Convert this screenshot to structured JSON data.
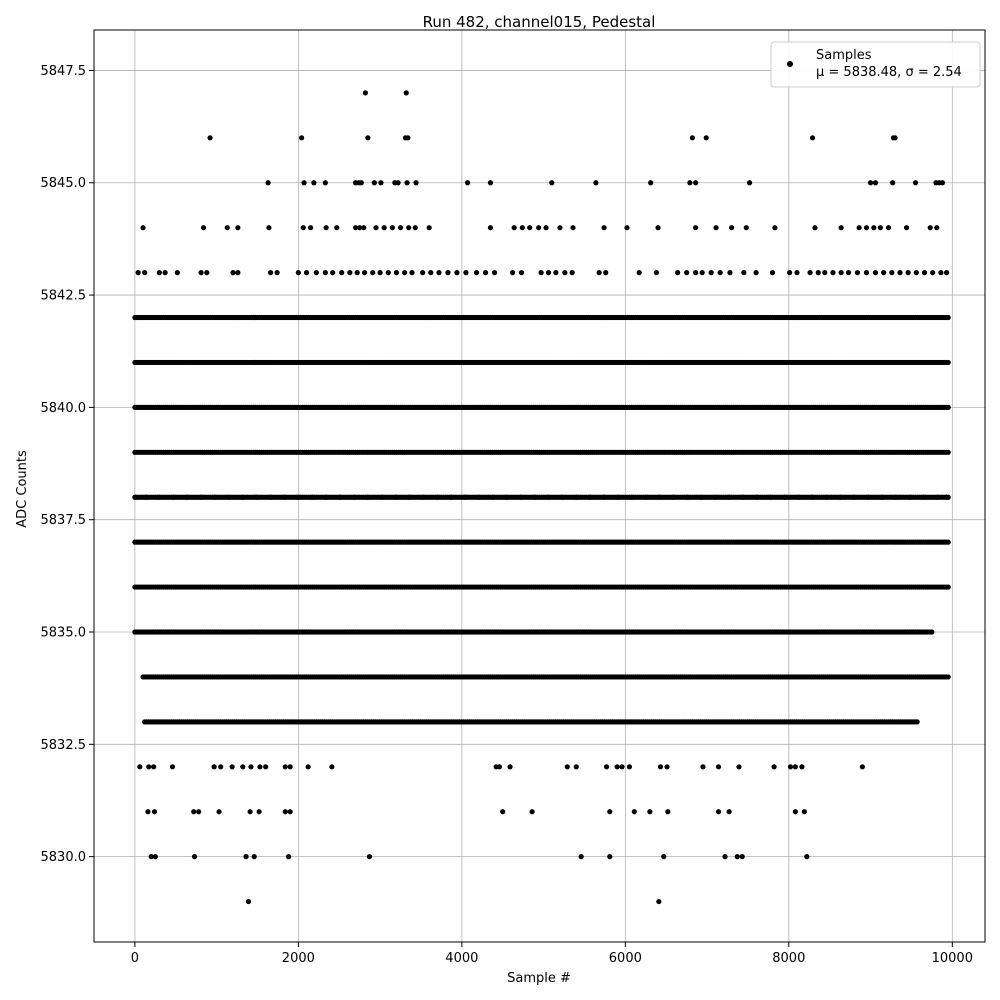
{
  "chart_data": {
    "type": "scatter",
    "title": "Run 482, channel015, Pedestal",
    "xlabel": "Sample #",
    "ylabel": "ADC Counts",
    "xlim": [
      -500,
      10400
    ],
    "ylim": [
      5828.1,
      5848.4
    ],
    "xticks": [
      0,
      2000,
      4000,
      6000,
      8000,
      10000
    ],
    "xtick_labels": [
      "0",
      "2000",
      "4000",
      "6000",
      "8000",
      "10000"
    ],
    "yticks": [
      5830.0,
      5832.5,
      5835.0,
      5837.5,
      5840.0,
      5842.5,
      5845.0,
      5847.5
    ],
    "ytick_labels": [
      "5830.0",
      "5832.5",
      "5835.0",
      "5837.5",
      "5840.0",
      "5842.5",
      "5845.0",
      "5847.5"
    ],
    "grid": true,
    "legend_position": "top-right",
    "marker_color": "#000000",
    "series": [
      {
        "name": "Samples",
        "legend_stats": "μ = 5838.48, σ = 2.54",
        "points": [
          [
            920,
            5846
          ],
          [
            2040,
            5846
          ],
          [
            2850,
            5846
          ],
          [
            3310,
            5846
          ],
          [
            3340,
            5846
          ],
          [
            6820,
            5846
          ],
          [
            6990,
            5846
          ],
          [
            8290,
            5846
          ],
          [
            9280,
            5846
          ],
          [
            9300,
            5846
          ],
          [
            2820,
            5847
          ],
          [
            3320,
            5847
          ],
          [
            1630,
            5845
          ],
          [
            2070,
            5845
          ],
          [
            2190,
            5845
          ],
          [
            2330,
            5845
          ],
          [
            2700,
            5845
          ],
          [
            2740,
            5845
          ],
          [
            2770,
            5845
          ],
          [
            2930,
            5845
          ],
          [
            3010,
            5845
          ],
          [
            3180,
            5845
          ],
          [
            3220,
            5845
          ],
          [
            3330,
            5845
          ],
          [
            3440,
            5845
          ],
          [
            4070,
            5845
          ],
          [
            4350,
            5845
          ],
          [
            5100,
            5845
          ],
          [
            5640,
            5845
          ],
          [
            6310,
            5845
          ],
          [
            6790,
            5845
          ],
          [
            6860,
            5845
          ],
          [
            7520,
            5845
          ],
          [
            9000,
            5845
          ],
          [
            9060,
            5845
          ],
          [
            9270,
            5845
          ],
          [
            9550,
            5845
          ],
          [
            9800,
            5845
          ],
          [
            9840,
            5845
          ],
          [
            9880,
            5845
          ],
          [
            100,
            5844
          ],
          [
            840,
            5844
          ],
          [
            1130,
            5844
          ],
          [
            1260,
            5844
          ],
          [
            1640,
            5844
          ],
          [
            2060,
            5844
          ],
          [
            2150,
            5844
          ],
          [
            2340,
            5844
          ],
          [
            2470,
            5844
          ],
          [
            2700,
            5844
          ],
          [
            2750,
            5844
          ],
          [
            2800,
            5844
          ],
          [
            2950,
            5844
          ],
          [
            3050,
            5844
          ],
          [
            3150,
            5844
          ],
          [
            3250,
            5844
          ],
          [
            3350,
            5844
          ],
          [
            3430,
            5844
          ],
          [
            3600,
            5844
          ],
          [
            4350,
            5844
          ],
          [
            4640,
            5844
          ],
          [
            4740,
            5844
          ],
          [
            4830,
            5844
          ],
          [
            4940,
            5844
          ],
          [
            5030,
            5844
          ],
          [
            5200,
            5844
          ],
          [
            5360,
            5844
          ],
          [
            5740,
            5844
          ],
          [
            6020,
            5844
          ],
          [
            6400,
            5844
          ],
          [
            6860,
            5844
          ],
          [
            7110,
            5844
          ],
          [
            7300,
            5844
          ],
          [
            7480,
            5844
          ],
          [
            7830,
            5844
          ],
          [
            8320,
            5844
          ],
          [
            8640,
            5844
          ],
          [
            8860,
            5844
          ],
          [
            8950,
            5844
          ],
          [
            9040,
            5844
          ],
          [
            9120,
            5844
          ],
          [
            9220,
            5844
          ],
          [
            9440,
            5844
          ],
          [
            9730,
            5844
          ],
          [
            9810,
            5844
          ],
          [
            40,
            5843
          ],
          [
            120,
            5843
          ],
          [
            300,
            5843
          ],
          [
            370,
            5843
          ],
          [
            520,
            5843
          ],
          [
            810,
            5843
          ],
          [
            880,
            5843
          ],
          [
            1200,
            5843
          ],
          [
            1260,
            5843
          ],
          [
            1660,
            5843
          ],
          [
            1740,
            5843
          ],
          [
            2000,
            5843
          ],
          [
            2100,
            5843
          ],
          [
            2220,
            5843
          ],
          [
            2330,
            5843
          ],
          [
            2420,
            5843
          ],
          [
            2530,
            5843
          ],
          [
            2630,
            5843
          ],
          [
            2720,
            5843
          ],
          [
            2810,
            5843
          ],
          [
            2910,
            5843
          ],
          [
            3000,
            5843
          ],
          [
            3100,
            5843
          ],
          [
            3200,
            5843
          ],
          [
            3300,
            5843
          ],
          [
            3390,
            5843
          ],
          [
            3520,
            5843
          ],
          [
            3620,
            5843
          ],
          [
            3720,
            5843
          ],
          [
            3830,
            5843
          ],
          [
            3940,
            5843
          ],
          [
            4050,
            5843
          ],
          [
            4180,
            5843
          ],
          [
            4290,
            5843
          ],
          [
            4400,
            5843
          ],
          [
            4620,
            5843
          ],
          [
            4730,
            5843
          ],
          [
            4970,
            5843
          ],
          [
            5060,
            5843
          ],
          [
            5150,
            5843
          ],
          [
            5260,
            5843
          ],
          [
            5350,
            5843
          ],
          [
            5680,
            5843
          ],
          [
            5760,
            5843
          ],
          [
            6170,
            5843
          ],
          [
            6380,
            5843
          ],
          [
            6640,
            5843
          ],
          [
            6750,
            5843
          ],
          [
            6860,
            5843
          ],
          [
            6940,
            5843
          ],
          [
            7050,
            5843
          ],
          [
            7160,
            5843
          ],
          [
            7280,
            5843
          ],
          [
            7450,
            5843
          ],
          [
            7600,
            5843
          ],
          [
            7800,
            5843
          ],
          [
            8010,
            5843
          ],
          [
            8100,
            5843
          ],
          [
            8260,
            5843
          ],
          [
            8360,
            5843
          ],
          [
            8440,
            5843
          ],
          [
            8540,
            5843
          ],
          [
            8640,
            5843
          ],
          [
            8730,
            5843
          ],
          [
            8840,
            5843
          ],
          [
            8950,
            5843
          ],
          [
            9060,
            5843
          ],
          [
            9160,
            5843
          ],
          [
            9260,
            5843
          ],
          [
            9360,
            5843
          ],
          [
            9460,
            5843
          ],
          [
            9560,
            5843
          ],
          [
            9660,
            5843
          ],
          [
            9760,
            5843
          ],
          [
            9860,
            5843
          ],
          [
            9930,
            5843
          ],
          [
            10,
            5838
          ],
          [
            140,
            5838
          ],
          [
            300,
            5838
          ],
          [
            470,
            5838
          ],
          [
            640,
            5838
          ],
          [
            810,
            5838
          ],
          [
            980,
            5838
          ],
          [
            1150,
            5838
          ],
          [
            1320,
            5838
          ],
          [
            1490,
            5838
          ],
          [
            1660,
            5838
          ],
          [
            1830,
            5838
          ],
          [
            2000,
            5838
          ],
          [
            2170,
            5838
          ],
          [
            2340,
            5838
          ],
          [
            2510,
            5838
          ],
          [
            2680,
            5838
          ],
          [
            2850,
            5838
          ],
          [
            3020,
            5838
          ],
          [
            3190,
            5838
          ],
          [
            3360,
            5838
          ],
          [
            3530,
            5838
          ],
          [
            3700,
            5838
          ],
          [
            3870,
            5838
          ],
          [
            4040,
            5838
          ],
          [
            4210,
            5838
          ],
          [
            4380,
            5838
          ],
          [
            4550,
            5838
          ],
          [
            4720,
            5838
          ],
          [
            4890,
            5838
          ],
          [
            5060,
            5838
          ],
          [
            5230,
            5838
          ],
          [
            5400,
            5838
          ],
          [
            5570,
            5838
          ],
          [
            5740,
            5838
          ],
          [
            5910,
            5838
          ],
          [
            6080,
            5838
          ],
          [
            6250,
            5838
          ],
          [
            6420,
            5838
          ],
          [
            6590,
            5838
          ],
          [
            6760,
            5838
          ],
          [
            6930,
            5838
          ],
          [
            7100,
            5838
          ],
          [
            7270,
            5838
          ],
          [
            7440,
            5838
          ],
          [
            7610,
            5838
          ],
          [
            7780,
            5838
          ],
          [
            7950,
            5838
          ],
          [
            8120,
            5838
          ],
          [
            8290,
            5838
          ],
          [
            8460,
            5838
          ],
          [
            8630,
            5838
          ],
          [
            8800,
            5838
          ],
          [
            8970,
            5838
          ],
          [
            9140,
            5838
          ],
          [
            9310,
            5838
          ],
          [
            9480,
            5838
          ],
          [
            9650,
            5838
          ],
          [
            9820,
            5838
          ],
          [
            9930,
            5838
          ],
          [
            60,
            5832
          ],
          [
            170,
            5832
          ],
          [
            230,
            5832
          ],
          [
            460,
            5832
          ],
          [
            970,
            5832
          ],
          [
            1050,
            5832
          ],
          [
            1190,
            5832
          ],
          [
            1320,
            5832
          ],
          [
            1420,
            5832
          ],
          [
            1530,
            5832
          ],
          [
            1600,
            5832
          ],
          [
            1840,
            5832
          ],
          [
            1900,
            5832
          ],
          [
            2120,
            5832
          ],
          [
            2410,
            5832
          ],
          [
            4420,
            5832
          ],
          [
            4460,
            5832
          ],
          [
            4590,
            5832
          ],
          [
            5290,
            5832
          ],
          [
            5400,
            5832
          ],
          [
            5770,
            5832
          ],
          [
            5900,
            5832
          ],
          [
            5960,
            5832
          ],
          [
            6050,
            5832
          ],
          [
            6430,
            5832
          ],
          [
            6510,
            5832
          ],
          [
            6950,
            5832
          ],
          [
            7140,
            5832
          ],
          [
            7390,
            5832
          ],
          [
            7820,
            5832
          ],
          [
            8020,
            5832
          ],
          [
            8080,
            5832
          ],
          [
            8160,
            5832
          ],
          [
            8900,
            5832
          ],
          [
            160,
            5831
          ],
          [
            240,
            5831
          ],
          [
            720,
            5831
          ],
          [
            780,
            5831
          ],
          [
            1030,
            5831
          ],
          [
            1410,
            5831
          ],
          [
            1520,
            5831
          ],
          [
            1840,
            5831
          ],
          [
            1900,
            5831
          ],
          [
            4500,
            5831
          ],
          [
            4860,
            5831
          ],
          [
            5810,
            5831
          ],
          [
            6110,
            5831
          ],
          [
            6300,
            5831
          ],
          [
            6520,
            5831
          ],
          [
            7140,
            5831
          ],
          [
            7270,
            5831
          ],
          [
            8080,
            5831
          ],
          [
            8190,
            5831
          ],
          [
            200,
            5830
          ],
          [
            250,
            5830
          ],
          [
            730,
            5830
          ],
          [
            1360,
            5830
          ],
          [
            1460,
            5830
          ],
          [
            1880,
            5830
          ],
          [
            2870,
            5830
          ],
          [
            5460,
            5830
          ],
          [
            5810,
            5830
          ],
          [
            6470,
            5830
          ],
          [
            7220,
            5830
          ],
          [
            7370,
            5830
          ],
          [
            7430,
            5830
          ],
          [
            8220,
            5830
          ],
          [
            1390,
            5829
          ],
          [
            6410,
            5829
          ]
        ],
        "dense_rows": [
          {
            "y": 5842,
            "x_range": [
              0,
              9950
            ]
          },
          {
            "y": 5841,
            "x_range": [
              0,
              9950
            ]
          },
          {
            "y": 5840,
            "x_range": [
              0,
              9950
            ]
          },
          {
            "y": 5839,
            "x_range": [
              0,
              9950
            ]
          },
          {
            "y": 5838,
            "x_range": [
              0,
              9950
            ]
          },
          {
            "y": 5837,
            "x_range": [
              0,
              9950
            ]
          },
          {
            "y": 5836,
            "x_range": [
              0,
              9950
            ]
          },
          {
            "y": 5835,
            "x_range": [
              0,
              9750
            ]
          },
          {
            "y": 5834,
            "x_range": [
              100,
              9950
            ]
          },
          {
            "y": 5833,
            "x_range": [
              120,
              9580
            ]
          }
        ]
      }
    ]
  }
}
